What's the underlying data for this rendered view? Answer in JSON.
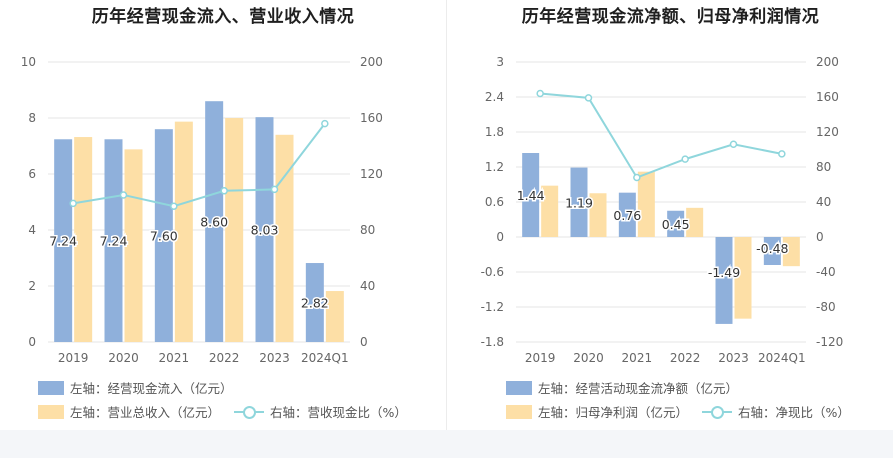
{
  "left": {
    "title": "历年经营现金流入、营业收入情况",
    "legend": {
      "bar1": "左轴：经营现金流入（亿元）",
      "bar2": "左轴：营业总收入（亿元）",
      "line": "右轴：营收现金比（%）"
    }
  },
  "right": {
    "title": "历年经营现金流净额、归母净利润情况",
    "legend": {
      "bar1": "左轴：经营活动现金流净额（亿元）",
      "bar2": "左轴：归母净利润（亿元）",
      "line": "右轴：净现比（%）"
    }
  },
  "colors": {
    "bar1": "#8fb0db",
    "bar2": "#fddfa6",
    "line": "#8fd6dc",
    "grid": "#e6e6e6",
    "axis_text": "#666666"
  },
  "chart_data": [
    {
      "type": "bar",
      "categories": [
        "2019",
        "2020",
        "2021",
        "2022",
        "2023",
        "2024Q1"
      ],
      "series": [
        {
          "name": "左轴：经营现金流入（亿元）",
          "axis": "left",
          "values": [
            7.24,
            7.24,
            7.6,
            8.6,
            8.03,
            2.82
          ],
          "labels": [
            "7.24",
            "7.24",
            "7.60",
            "8.60",
            "8.03",
            "2.82"
          ]
        },
        {
          "name": "左轴：营业总收入（亿元）",
          "axis": "left",
          "values": [
            7.32,
            6.88,
            7.87,
            8.0,
            7.4,
            1.82
          ]
        },
        {
          "name": "右轴：营收现金比（%）",
          "axis": "right",
          "type": "line",
          "values": [
            99,
            105,
            97,
            108,
            109,
            156
          ]
        }
      ],
      "y_left": {
        "min": 0,
        "max": 10,
        "ticks": [
          "0",
          "2",
          "4",
          "6",
          "8",
          "10"
        ]
      },
      "y_right": {
        "min": 0,
        "max": 200,
        "ticks": [
          "0",
          "40",
          "80",
          "120",
          "160",
          "200"
        ]
      },
      "grid": true,
      "legend_position": "bottom-left"
    },
    {
      "type": "bar",
      "categories": [
        "2019",
        "2020",
        "2021",
        "2022",
        "2023",
        "2024Q1"
      ],
      "series": [
        {
          "name": "左轴：经营活动现金流净额（亿元）",
          "axis": "left",
          "values": [
            1.44,
            1.19,
            0.76,
            0.45,
            -1.49,
            -0.48
          ],
          "labels": [
            "1.44",
            "1.19",
            "0.76",
            "0.45",
            "-1.49",
            "-0.48"
          ]
        },
        {
          "name": "左轴：归母净利润（亿元）",
          "axis": "left",
          "values": [
            0.88,
            0.75,
            1.12,
            0.5,
            -1.4,
            -0.5
          ]
        },
        {
          "name": "右轴：净现比（%）",
          "axis": "right",
          "type": "line",
          "values": [
            164,
            159,
            68,
            89,
            106,
            95
          ]
        }
      ],
      "y_left": {
        "min": -1.8,
        "max": 3,
        "ticks": [
          "-1.8",
          "-1.2",
          "-0.6",
          "0",
          "0.6",
          "1.2",
          "1.8",
          "2.4",
          "3"
        ]
      },
      "y_right": {
        "min": -120,
        "max": 200,
        "ticks": [
          "-120",
          "-80",
          "-40",
          "0",
          "40",
          "80",
          "120",
          "160",
          "200"
        ]
      },
      "grid": true,
      "legend_position": "bottom-left"
    }
  ]
}
